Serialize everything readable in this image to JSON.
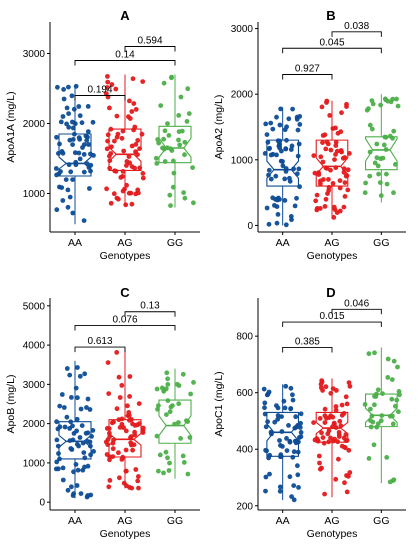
{
  "colors": {
    "AA": "#0d4c95",
    "AG": "#e41a1c",
    "GG": "#4daf4a"
  },
  "chart_data": [
    {
      "type": "box",
      "panel": "A",
      "xlabel": "Genotypes",
      "ylabel": "ApoA1A (mg/L)",
      "ylim": [
        450,
        3450
      ],
      "yticks": [
        1000,
        2000,
        3000
      ],
      "categories": [
        "AA",
        "AG",
        "GG"
      ],
      "boxes": [
        {
          "min": 560,
          "q1": 1250,
          "median": 1430,
          "q3": 1850,
          "max": 2550,
          "notch": [
            1350,
            1520
          ]
        },
        {
          "min": 820,
          "q1": 1330,
          "median": 1560,
          "q3": 1920,
          "max": 2700,
          "notch": [
            1460,
            1660
          ]
        },
        {
          "min": 800,
          "q1": 1440,
          "median": 1650,
          "q3": 1960,
          "max": 2700,
          "notch": [
            1520,
            1790
          ]
        }
      ],
      "comparisons": [
        {
          "label": "0.194",
          "from": 0,
          "to": 1,
          "y": 2400
        },
        {
          "label": "0.14",
          "from": 0,
          "to": 2,
          "y": 2900
        },
        {
          "label": "0.594",
          "from": 1,
          "to": 2,
          "y": 3100
        }
      ]
    },
    {
      "type": "box",
      "panel": "B",
      "xlabel": "Genotypes",
      "ylabel": "ApoA2 (mg/L)",
      "ylim": [
        -100,
        3100
      ],
      "yticks": [
        0,
        1000,
        2000,
        3000
      ],
      "categories": [
        "AA",
        "AG",
        "GG"
      ],
      "boxes": [
        {
          "min": 0,
          "q1": 600,
          "median": 850,
          "q3": 1300,
          "max": 1800,
          "notch": [
            720,
            980
          ]
        },
        {
          "min": 100,
          "q1": 600,
          "median": 900,
          "q3": 1300,
          "max": 1900,
          "notch": [
            780,
            1030
          ]
        },
        {
          "min": 350,
          "q1": 850,
          "median": 1150,
          "q3": 1350,
          "max": 2000,
          "notch": [
            980,
            1320
          ]
        }
      ],
      "comparisons": [
        {
          "label": "0.927",
          "from": 0,
          "to": 1,
          "y": 2300
        },
        {
          "label": "0.045",
          "from": 0,
          "to": 2,
          "y": 2700
        },
        {
          "label": "0.038",
          "from": 1,
          "to": 2,
          "y": 2950
        }
      ]
    },
    {
      "type": "box",
      "panel": "C",
      "xlabel": "Genotypes",
      "ylabel": "ApoB (mg/L)",
      "ylim": [
        -200,
        5200
      ],
      "yticks": [
        0,
        1000,
        2000,
        3000,
        4000,
        5000
      ],
      "categories": [
        "AA",
        "AG",
        "GG"
      ],
      "boxes": [
        {
          "min": 100,
          "q1": 1100,
          "median": 1550,
          "q3": 2050,
          "max": 3600,
          "notch": [
            1400,
            1700
          ]
        },
        {
          "min": 350,
          "q1": 1150,
          "median": 1600,
          "q3": 2100,
          "max": 3900,
          "notch": [
            1450,
            1750
          ]
        },
        {
          "min": 600,
          "q1": 1500,
          "median": 1950,
          "q3": 2600,
          "max": 3400,
          "notch": [
            1700,
            2200
          ]
        }
      ],
      "comparisons": [
        {
          "label": "0.613",
          "from": 0,
          "to": 1,
          "y": 3950
        },
        {
          "label": "0.076",
          "from": 0,
          "to": 2,
          "y": 4500
        },
        {
          "label": "0.13",
          "from": 1,
          "to": 2,
          "y": 4850
        }
      ]
    },
    {
      "type": "box",
      "panel": "D",
      "xlabel": "Genotypes",
      "ylabel": "ApoC1 (mg/L)",
      "ylim": [
        185,
        935
      ],
      "yticks": [
        200,
        400,
        600,
        800
      ],
      "categories": [
        "AA",
        "AG",
        "GG"
      ],
      "boxes": [
        {
          "min": 220,
          "q1": 375,
          "median": 460,
          "q3": 530,
          "max": 630,
          "notch": [
            430,
            490
          ]
        },
        {
          "min": 230,
          "q1": 425,
          "median": 475,
          "q3": 530,
          "max": 650,
          "notch": [
            455,
            495
          ]
        },
        {
          "min": 280,
          "q1": 480,
          "median": 520,
          "q3": 595,
          "max": 760,
          "notch": [
            495,
            545
          ]
        }
      ],
      "comparisons": [
        {
          "label": "0.385",
          "from": 0,
          "to": 1,
          "y": 760
        },
        {
          "label": "0.015",
          "from": 0,
          "to": 2,
          "y": 850
        },
        {
          "label": "0.046",
          "from": 1,
          "to": 2,
          "y": 895
        }
      ]
    }
  ]
}
